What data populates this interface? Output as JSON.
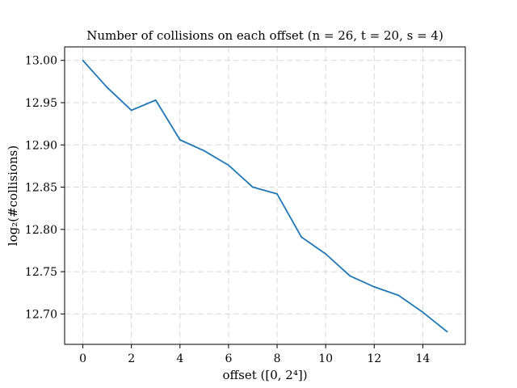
{
  "chart_data": {
    "type": "line",
    "title": "Number of collisions on each offset (n = 26, t = 20, s = 4)",
    "xlabel": "offset ([0, 2⁴])",
    "ylabel": "log₂(#collisions)",
    "x": [
      0,
      1,
      2,
      3,
      4,
      5,
      6,
      7,
      8,
      9,
      10,
      11,
      12,
      13,
      14,
      15
    ],
    "series": [
      {
        "values": [
          13.0,
          12.968,
          12.941,
          12.953,
          12.906,
          12.893,
          12.876,
          12.85,
          12.842,
          12.791,
          12.771,
          12.745,
          12.732,
          12.722,
          12.702,
          12.679
        ],
        "color": "#1f77b4"
      }
    ],
    "xticks": [
      0,
      2,
      4,
      6,
      8,
      10,
      12,
      14
    ],
    "xtick_labels": [
      "0",
      "2",
      "4",
      "6",
      "8",
      "10",
      "12",
      "14"
    ],
    "yticks": [
      12.7,
      12.75,
      12.8,
      12.85,
      12.9,
      12.95,
      13.0
    ],
    "ytick_labels": [
      "12.70",
      "12.75",
      "12.80",
      "12.85",
      "12.90",
      "12.95",
      "13.00"
    ],
    "xlim": [
      -0.75,
      15.75
    ],
    "ylim": [
      12.664,
      13.016
    ],
    "grid": true,
    "grid_color": "#d8d8d8"
  }
}
